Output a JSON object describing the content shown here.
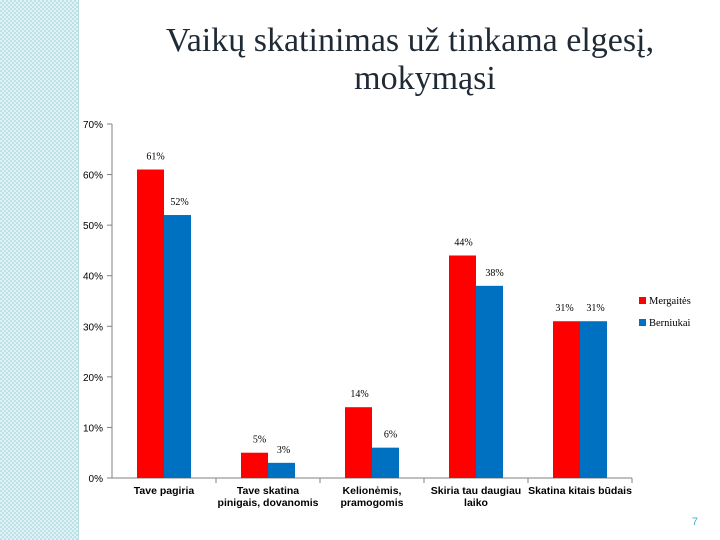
{
  "title_line1": "Vaikų skatinimas už tinkama elgesį,",
  "title_line2": "mokymąsi",
  "page_number": "7",
  "colors": {
    "series1": "#ff0000",
    "series2": "#0070c0",
    "accent_strip": "#dff2f5",
    "page_number": "#3ab0c6"
  },
  "chart_data": {
    "type": "bar",
    "categories": [
      [
        "Tave pagiria"
      ],
      [
        "Tave skatina",
        "pinigais, dovanomis"
      ],
      [
        "Kelionėmis,",
        "pramogomis"
      ],
      [
        "Skiria tau daugiau",
        "laiko"
      ],
      [
        "Skatina kitais būdais"
      ]
    ],
    "series": [
      {
        "name": "Mergaitės",
        "values": [
          61,
          5,
          14,
          44,
          31
        ],
        "labels": [
          "61%",
          "5%",
          "14%",
          "44%",
          "31%"
        ],
        "color": "#ff0000"
      },
      {
        "name": "Berniukai",
        "values": [
          52,
          3,
          6,
          38,
          31
        ],
        "labels": [
          "52%",
          "3%",
          "6%",
          "38%",
          "31%"
        ],
        "color": "#0070c0"
      }
    ],
    "ylim": [
      0,
      70
    ],
    "yticks": [
      0,
      10,
      20,
      30,
      40,
      50,
      60,
      70
    ],
    "ytick_labels": [
      "0%",
      "10%",
      "20%",
      "30%",
      "40%",
      "50%",
      "60%",
      "70%"
    ],
    "legend_position": "right",
    "grid": false
  }
}
